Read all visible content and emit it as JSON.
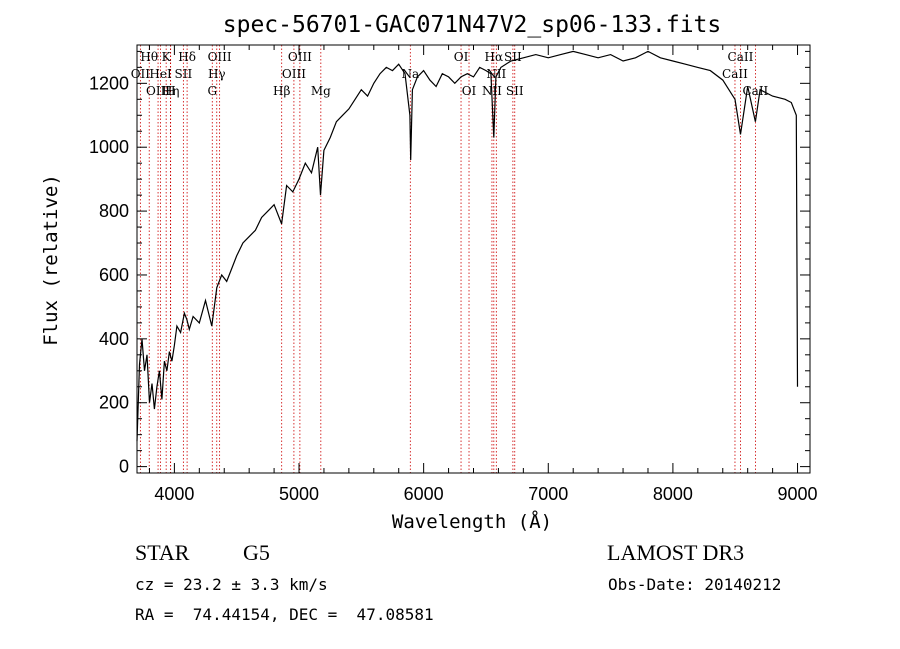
{
  "chart_data": {
    "type": "line",
    "title": "spec-56701-GAC071N47V2_sp06-133.fits",
    "xlabel": "Wavelength (Å)",
    "ylabel": "Flux (relative)",
    "xlim": [
      3700,
      9100
    ],
    "ylim": [
      -20,
      1320
    ],
    "xticks": [
      4000,
      5000,
      6000,
      7000,
      8000,
      9000
    ],
    "yticks": [
      0,
      200,
      400,
      600,
      800,
      1000,
      1200
    ],
    "series": [
      {
        "name": "spectrum",
        "x": [
          3700,
          3720,
          3740,
          3760,
          3780,
          3800,
          3820,
          3840,
          3860,
          3880,
          3900,
          3920,
          3940,
          3960,
          3980,
          4000,
          4020,
          4050,
          4080,
          4100,
          4120,
          4150,
          4200,
          4250,
          4300,
          4340,
          4380,
          4420,
          4460,
          4500,
          4550,
          4600,
          4650,
          4700,
          4750,
          4800,
          4860,
          4900,
          4950,
          5000,
          5050,
          5100,
          5150,
          5172,
          5200,
          5250,
          5300,
          5350,
          5400,
          5450,
          5500,
          5550,
          5600,
          5650,
          5700,
          5750,
          5800,
          5850,
          5890,
          5896,
          5910,
          5950,
          6000,
          6050,
          6100,
          6150,
          6200,
          6250,
          6300,
          6350,
          6400,
          6450,
          6500,
          6540,
          6563,
          6580,
          6620,
          6700,
          6800,
          6900,
          7000,
          7100,
          7200,
          7300,
          7400,
          7500,
          7600,
          7700,
          7800,
          7900,
          8000,
          8100,
          8200,
          8300,
          8400,
          8498,
          8542,
          8600,
          8662,
          8700,
          8800,
          8900,
          8950,
          8990,
          9000
        ],
        "y": [
          80,
          320,
          400,
          300,
          350,
          200,
          260,
          180,
          250,
          300,
          210,
          330,
          300,
          360,
          330,
          380,
          440,
          420,
          480,
          460,
          430,
          470,
          450,
          520,
          440,
          560,
          600,
          580,
          620,
          660,
          700,
          720,
          740,
          780,
          800,
          820,
          760,
          880,
          860,
          900,
          950,
          920,
          1000,
          850,
          990,
          1030,
          1080,
          1100,
          1120,
          1150,
          1180,
          1160,
          1200,
          1230,
          1250,
          1240,
          1260,
          1230,
          1100,
          960,
          1180,
          1220,
          1240,
          1210,
          1190,
          1230,
          1220,
          1200,
          1220,
          1230,
          1220,
          1250,
          1240,
          1230,
          1030,
          1220,
          1250,
          1270,
          1280,
          1290,
          1280,
          1290,
          1300,
          1290,
          1280,
          1290,
          1270,
          1280,
          1300,
          1280,
          1270,
          1260,
          1250,
          1240,
          1210,
          1150,
          1040,
          1190,
          1080,
          1180,
          1160,
          1150,
          1140,
          1100,
          250
        ]
      }
    ],
    "spectral_lines": [
      {
        "wl": 3727,
        "labels": [
          {
            "text": "OII",
            "row": 2
          }
        ]
      },
      {
        "wl": 3798,
        "labels": [
          {
            "text": "Hθ",
            "row": 1
          }
        ]
      },
      {
        "wl": 3869,
        "labels": [
          {
            "text": "OIII",
            "row": 3
          }
        ]
      },
      {
        "wl": 3889,
        "labels": [
          {
            "text": "HeI",
            "row": 2
          }
        ]
      },
      {
        "wl": 3934,
        "labels": [
          {
            "text": "K",
            "row": 1
          }
        ]
      },
      {
        "wl": 3970,
        "labels": [
          {
            "text": "Hη",
            "row": 3
          }
        ]
      },
      {
        "wl": 3968,
        "labels": [
          {
            "text": "H",
            "row": 3
          }
        ]
      },
      {
        "wl": 4072,
        "labels": [
          {
            "text": "SII",
            "row": 2
          }
        ]
      },
      {
        "wl": 4102,
        "labels": [
          {
            "text": "Hδ",
            "row": 1
          }
        ]
      },
      {
        "wl": 4304,
        "labels": [
          {
            "text": "G",
            "row": 3
          }
        ]
      },
      {
        "wl": 4340,
        "labels": [
          {
            "text": "Hγ",
            "row": 2
          }
        ]
      },
      {
        "wl": 4363,
        "labels": [
          {
            "text": "OIII",
            "row": 1
          }
        ]
      },
      {
        "wl": 4861,
        "labels": [
          {
            "text": "Hβ",
            "row": 3
          }
        ]
      },
      {
        "wl": 4959,
        "labels": [
          {
            "text": "OIII",
            "row": 2
          }
        ]
      },
      {
        "wl": 5007,
        "labels": [
          {
            "text": "OIII",
            "row": 1
          }
        ]
      },
      {
        "wl": 5175,
        "labels": [
          {
            "text": "Mg",
            "row": 3
          }
        ]
      },
      {
        "wl": 5893,
        "labels": [
          {
            "text": "Na",
            "row": 2
          }
        ]
      },
      {
        "wl": 6300,
        "labels": [
          {
            "text": "OI",
            "row": 1
          }
        ]
      },
      {
        "wl": 6364,
        "labels": [
          {
            "text": "OI",
            "row": 3
          }
        ]
      },
      {
        "wl": 6548,
        "labels": [
          {
            "text": "NII",
            "row": 3
          }
        ]
      },
      {
        "wl": 6563,
        "labels": [
          {
            "text": "Hα",
            "row": 1
          }
        ]
      },
      {
        "wl": 6583,
        "labels": [
          {
            "text": "NII",
            "row": 2
          }
        ]
      },
      {
        "wl": 6716,
        "labels": [
          {
            "text": "SII",
            "row": 1
          }
        ]
      },
      {
        "wl": 6731,
        "labels": [
          {
            "text": "SII",
            "row": 3
          }
        ]
      },
      {
        "wl": 8498,
        "labels": [
          {
            "text": "CaII",
            "row": 2
          }
        ]
      },
      {
        "wl": 8542,
        "labels": [
          {
            "text": "CaII",
            "row": 1
          }
        ]
      },
      {
        "wl": 8662,
        "labels": [
          {
            "text": "CaII",
            "row": 3
          }
        ]
      }
    ]
  },
  "info": {
    "object_class": "STAR",
    "subclass": "G5",
    "survey": "LAMOST DR3",
    "redshift": "cz = 23.2 ± 3.3 km/s",
    "obs_date": "Obs-Date: 20140212",
    "coords": "RA =  74.44154, DEC =  47.08581"
  }
}
